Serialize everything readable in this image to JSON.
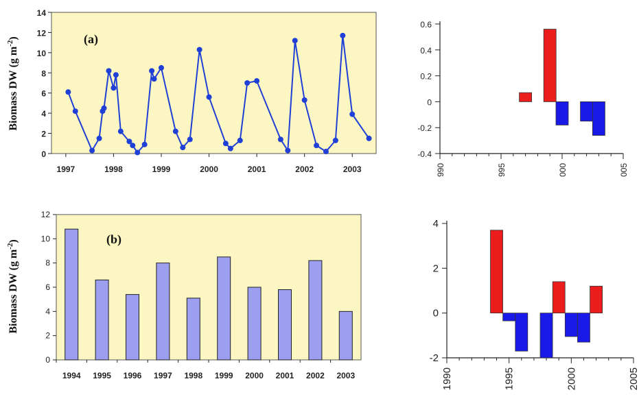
{
  "chart_data": [
    {
      "id": "a",
      "type": "line",
      "panel_label": "(a)",
      "ylabel": "Biomass DW (g m-2)",
      "ylabel_main": "Biomass DW (g m",
      "ylabel_sup": "-2",
      "ylabel_end": ")",
      "ylim": [
        0,
        14
      ],
      "yticks": [
        0,
        2,
        4,
        6,
        8,
        10,
        12,
        14
      ],
      "xlim": [
        1996.7,
        2003.5
      ],
      "xticks": [
        1997,
        1998,
        1999,
        2000,
        2001,
        2002,
        2003
      ],
      "background": "#fbf6c2",
      "series": [
        {
          "color": "#1f3fd6",
          "x": [
            1997.05,
            1997.2,
            1997.55,
            1997.7,
            1997.77,
            1997.8,
            1997.9,
            1998.0,
            1998.05,
            1998.15,
            1998.33,
            1998.4,
            1998.5,
            1998.65,
            1998.8,
            1998.85,
            1999.0,
            1999.3,
            1999.45,
            1999.6,
            1999.8,
            2000.0,
            2000.35,
            2000.45,
            2000.65,
            2000.8,
            2001.0,
            2001.5,
            2001.65,
            2001.8,
            2002.0,
            2002.25,
            2002.45,
            2002.65,
            2002.8,
            2003.0,
            2003.35
          ],
          "y": [
            6.1,
            4.2,
            0.3,
            1.5,
            4.2,
            4.5,
            8.2,
            6.5,
            7.8,
            2.2,
            1.2,
            0.8,
            0.1,
            0.9,
            8.2,
            7.4,
            8.5,
            2.2,
            0.6,
            1.4,
            10.3,
            5.6,
            1.0,
            0.5,
            1.3,
            7.0,
            7.2,
            1.4,
            0.3,
            11.2,
            5.3,
            0.8,
            0.2,
            1.3,
            11.7,
            3.9,
            1.5
          ]
        }
      ]
    },
    {
      "id": "b",
      "type": "bar",
      "panel_label": "(b)",
      "ylabel": "Biomass DW (g m-2)",
      "ylabel_main": "Biomass DW (g m",
      "ylabel_sup": "-2",
      "ylabel_end": ")",
      "ylim": [
        0,
        12
      ],
      "yticks": [
        0,
        2,
        4,
        6,
        8,
        10,
        12
      ],
      "background": "#fbf6c2",
      "bar_color": "#9c9ef0",
      "categories": [
        "1994",
        "1995",
        "1996",
        "1997",
        "1998",
        "1999",
        "2000",
        "2001",
        "2002",
        "2003"
      ],
      "values": [
        10.8,
        6.6,
        5.4,
        8.0,
        5.1,
        8.5,
        6.0,
        5.8,
        8.2,
        4.0
      ]
    },
    {
      "id": "c",
      "type": "bar",
      "ylim": [
        -0.4,
        0.6
      ],
      "yticks": [
        "-0.4",
        "-0.2",
        "0",
        "0.2",
        "0.4",
        "0.6"
      ],
      "xlim": [
        1990,
        2005
      ],
      "xticks": [
        1990,
        1995,
        2000,
        2005
      ],
      "xtick_labels": [
        "990",
        "995",
        "000",
        "005"
      ],
      "positive_color": "#ea1c1c",
      "negative_color": "#1a1ae8",
      "bars": [
        {
          "year": 1997,
          "value": 0.07
        },
        {
          "year": 1999,
          "value": 0.56
        },
        {
          "year": 2000,
          "value": -0.18
        },
        {
          "year": 2002,
          "value": -0.15
        },
        {
          "year": 2003,
          "value": -0.26
        }
      ]
    },
    {
      "id": "d",
      "type": "bar",
      "ylim": [
        -2,
        4
      ],
      "yticks": [
        "-2",
        "0",
        "2",
        "4"
      ],
      "xlim": [
        1990,
        2005
      ],
      "xticks": [
        1990,
        1995,
        2000,
        2005
      ],
      "xtick_labels": [
        "1990",
        "1995",
        "2000",
        "2005"
      ],
      "positive_color": "#ea1c1c",
      "negative_color": "#1a1ae8",
      "bars": [
        {
          "year": 1994,
          "value": 3.7
        },
        {
          "year": 1995,
          "value": -0.35
        },
        {
          "year": 1996,
          "value": -1.7
        },
        {
          "year": 1998,
          "value": -2.0
        },
        {
          "year": 1999,
          "value": 1.4
        },
        {
          "year": 2000,
          "value": -1.05
        },
        {
          "year": 2001,
          "value": -1.3
        },
        {
          "year": 2002,
          "value": 1.2
        }
      ]
    }
  ]
}
